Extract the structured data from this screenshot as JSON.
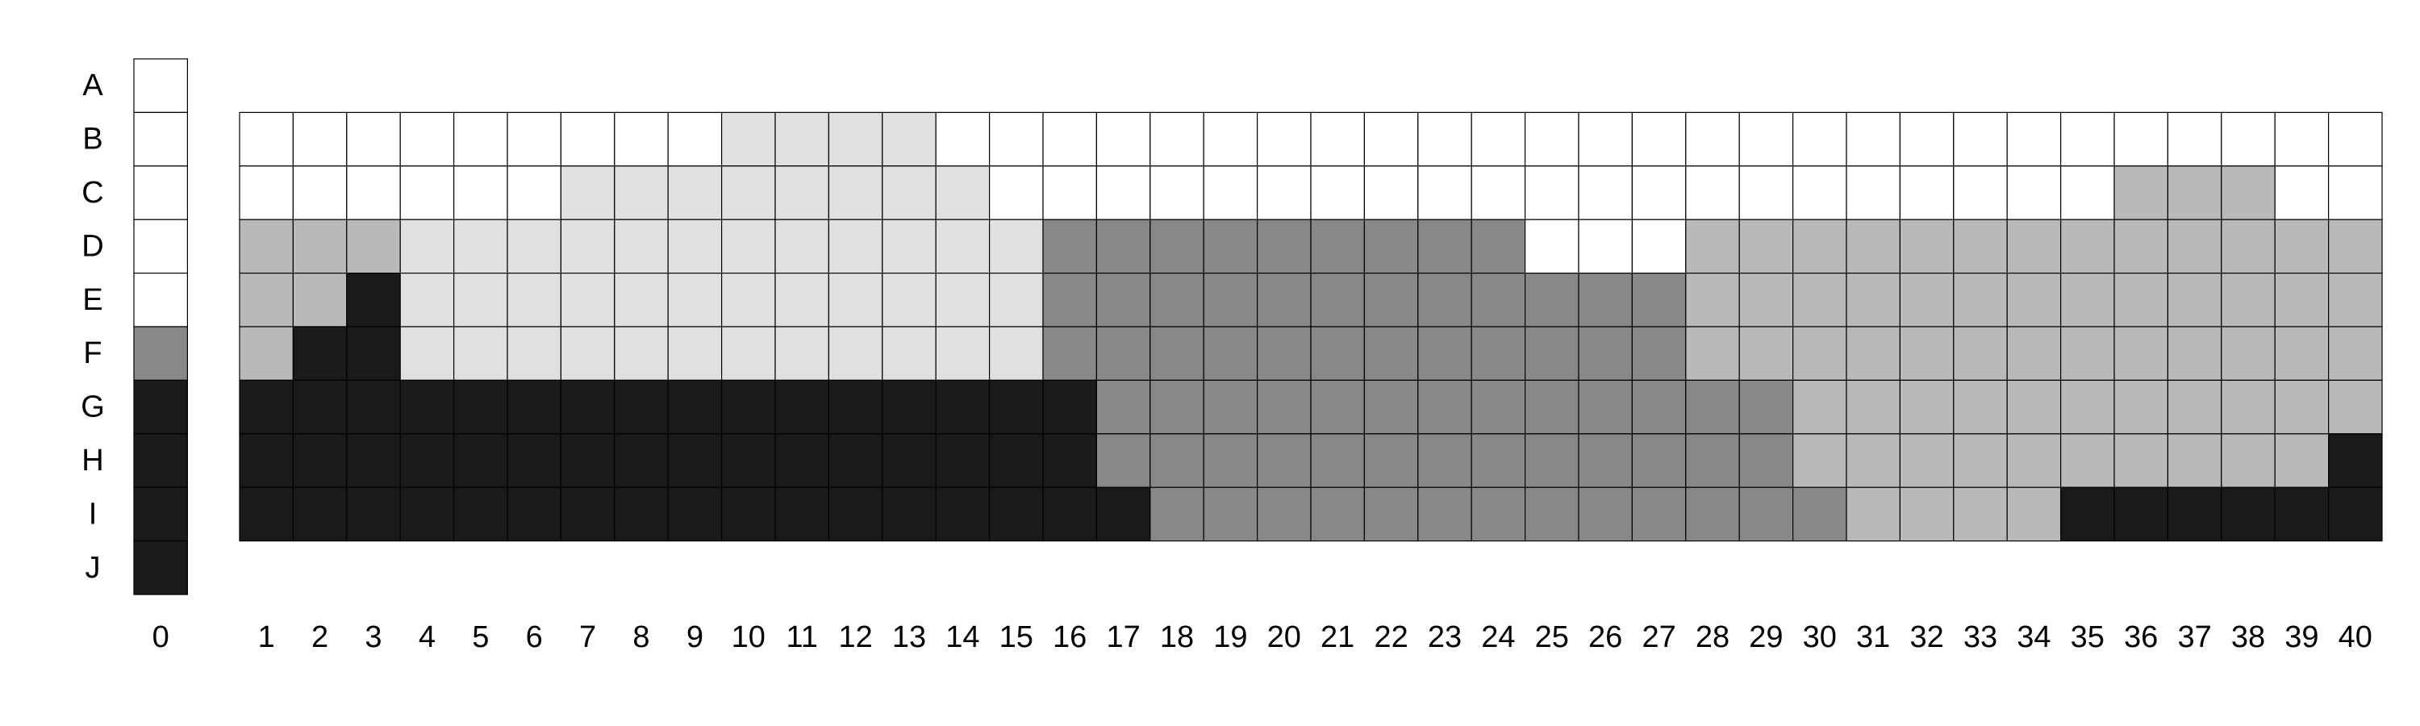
{
  "rows": [
    "A",
    "B",
    "C",
    "D",
    "E",
    "F",
    "G",
    "H",
    "I",
    "J"
  ],
  "palette": {
    "w": "#ffffff",
    "l": "#e0e0e0",
    "s": "#b9b9b9",
    "m": "#888888",
    "d": "#1a1a1a"
  },
  "column0": {
    "label": "0",
    "cells": [
      "w",
      "w",
      "w",
      "w",
      "w",
      "m",
      "d",
      "d",
      "d",
      "d"
    ]
  },
  "grid_rows": [
    "B",
    "C",
    "D",
    "E",
    "F",
    "G",
    "H",
    "I"
  ],
  "grid_columns": [
    "1",
    "2",
    "3",
    "4",
    "5",
    "6",
    "7",
    "8",
    "9",
    "10",
    "11",
    "12",
    "13",
    "14",
    "15",
    "16",
    "17",
    "18",
    "19",
    "20",
    "21",
    "22",
    "23",
    "24",
    "25",
    "26",
    "27",
    "28",
    "29",
    "30",
    "31",
    "32",
    "33",
    "34",
    "35",
    "36",
    "37",
    "38",
    "39",
    "40"
  ],
  "grid_cells": [
    "wwwwwwwwwllllwwwwwwwwwwwwwwwwwwwwwwwwwww",
    "wwwwwwllllllllwwwwwwwwwwwwwwwwwwwwwsssww",
    "sssllllllllllllmmmmmmmmmwwwsssssssssssss",
    "ssdllllllllllllmmmmmmmmmmmmsssssssssssss",
    "sddllllllllllllmmmmmmmmmmmmsssssssssssss",
    "ddddddddddddddddmmmmmmmmmmmmmsssssssssss",
    "ddddddddddddddddmmmmmmmmmmmmmssssssssssd",
    "dddddddddddddddddmmmmmmmmmmmmmssssdddddd"
  ]
}
